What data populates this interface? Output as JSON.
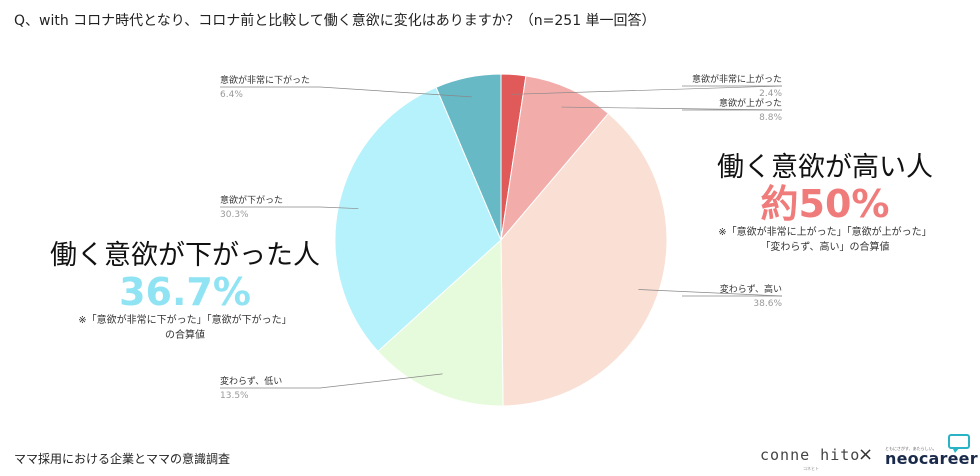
{
  "question": "Q、with コロナ時代となり、コロナ前と比較して働く意欲に変化はありますか？（n=251 単一回答）",
  "chart_data": {
    "type": "pie",
    "title": "Q、with コロナ時代となり、コロナ前と比較して働く意欲に変化はありますか？（n=251 単一回答）",
    "slices": [
      {
        "name": "意欲が非常に上がった",
        "value": 2.4,
        "label": "2.4%",
        "color": "#e05a5a"
      },
      {
        "name": "意欲が上がった",
        "value": 8.8,
        "label": "8.8%",
        "color": "#f2adab"
      },
      {
        "name": "変わらず、高い",
        "value": 38.6,
        "label": "38.6%",
        "color": "#f9dfd4"
      },
      {
        "name": "変わらず、低い",
        "value": 13.5,
        "label": "13.5%",
        "color": "#e6fbdc"
      },
      {
        "name": "意欲が下がった",
        "value": 30.3,
        "label": "30.3%",
        "color": "#b6f2fb"
      },
      {
        "name": "意欲が非常に下がった",
        "value": 6.4,
        "label": "6.4%",
        "color": "#67b9c6"
      }
    ]
  },
  "callouts": {
    "high": {
      "heading": "働く意欲が高い人",
      "percent": "約50%",
      "note_line1": "※「意欲が非常に上がった」「意欲が上がった」",
      "note_line2": "「変わらず、高い」の合算値",
      "color": "#f07b7b"
    },
    "low": {
      "heading": "働く意欲が下がった人",
      "percent": "36.7%",
      "note_line1": "※「意欲が非常に下がった」「意欲が下がった」",
      "note_line2": "の合算値",
      "color": "#8fe3f3"
    }
  },
  "footer": {
    "survey": "ママ採用における企業とママの意識調査",
    "brand1": "conne hito",
    "brand1_sub": "コネヒト",
    "cross": "×",
    "brand2": "neocareer",
    "brand2_sub": "ともにさがす、あたらしい。"
  }
}
